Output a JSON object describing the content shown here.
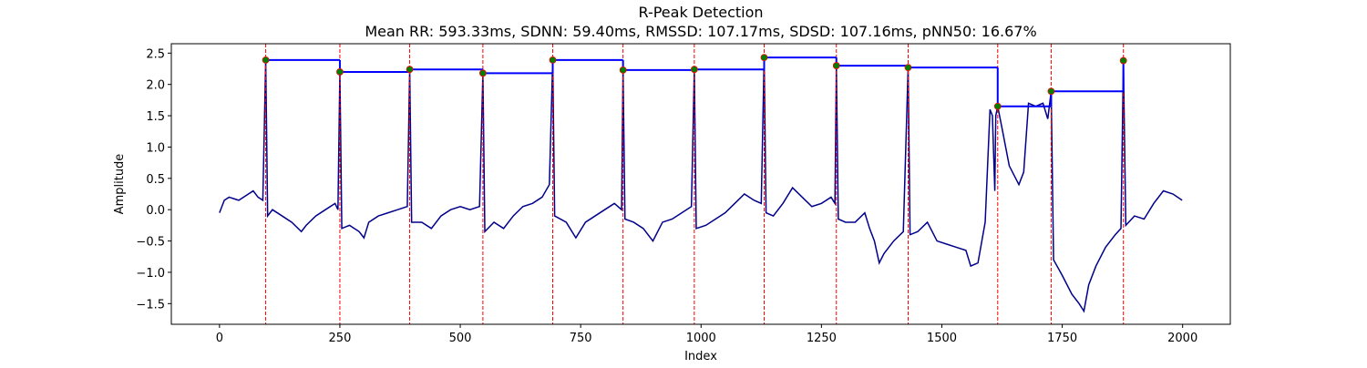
{
  "chart_data": {
    "type": "line",
    "title": "R-Peak Detection",
    "subtitle": "Mean RR: 593.33ms, SDNN: 59.40ms, RMSSD: 107.17ms, SDSD: 107.16ms, pNN50: 16.67%",
    "x_label": "Index",
    "y_label": "Amplitude",
    "xlim": [
      -100,
      2099
    ],
    "ylim": [
      -1.83,
      2.65
    ],
    "xticks": [
      0,
      250,
      500,
      750,
      1000,
      1250,
      1500,
      1750,
      2000
    ],
    "yticks": [
      {
        "value": -1.5,
        "label": "−1.5"
      },
      {
        "value": -1.0,
        "label": "−1.0"
      },
      {
        "value": -0.5,
        "label": "−0.5"
      },
      {
        "value": 0,
        "label": "0.0"
      },
      0.5,
      {
        "value": 1,
        "label": "1.0"
      },
      1.5,
      {
        "value": 2,
        "label": "2.0"
      },
      2.5
    ],
    "signal": {
      "color": "#00008b",
      "x": [
        0,
        10,
        20,
        40,
        60,
        70,
        80,
        90,
        96,
        100,
        110,
        130,
        150,
        170,
        180,
        200,
        220,
        240,
        246,
        250,
        254,
        270,
        290,
        300,
        310,
        330,
        350,
        370,
        390,
        395,
        399,
        420,
        440,
        460,
        480,
        500,
        520,
        540,
        547,
        551,
        570,
        590,
        610,
        630,
        650,
        670,
        685,
        692,
        696,
        720,
        740,
        760,
        780,
        800,
        820,
        835,
        838,
        842,
        860,
        880,
        900,
        920,
        940,
        960,
        980,
        986,
        990,
        1010,
        1030,
        1050,
        1070,
        1090,
        1110,
        1125,
        1131,
        1135,
        1150,
        1170,
        1190,
        1210,
        1230,
        1250,
        1270,
        1278,
        1281,
        1285,
        1300,
        1320,
        1340,
        1350,
        1360,
        1370,
        1380,
        1400,
        1420,
        1430,
        1434,
        1450,
        1470,
        1490,
        1510,
        1530,
        1550,
        1560,
        1575,
        1590,
        1600,
        1605,
        1610,
        1612,
        1616,
        1625,
        1640,
        1660,
        1670,
        1680,
        1695,
        1710,
        1720,
        1727,
        1732,
        1750,
        1770,
        1785,
        1795,
        1805,
        1820,
        1840,
        1860,
        1872,
        1877,
        1882,
        1900,
        1920,
        1940,
        1960,
        1980,
        1999
      ],
      "values": [
        -0.05,
        0.15,
        0.2,
        0.15,
        0.25,
        0.3,
        0.2,
        0.15,
        2.39,
        -0.1,
        0.0,
        -0.1,
        -0.2,
        -0.35,
        -0.25,
        -0.1,
        0.0,
        0.1,
        0.0,
        2.2,
        -0.3,
        -0.25,
        -0.35,
        -0.45,
        -0.2,
        -0.1,
        -0.05,
        0.0,
        0.05,
        2.24,
        -0.2,
        -0.2,
        -0.3,
        -0.1,
        0.0,
        0.05,
        0.0,
        0.05,
        2.18,
        -0.35,
        -0.2,
        -0.3,
        -0.1,
        0.05,
        0.1,
        0.2,
        0.4,
        2.39,
        -0.1,
        -0.2,
        -0.45,
        -0.2,
        -0.1,
        0.0,
        0.1,
        0.0,
        2.23,
        -0.15,
        -0.2,
        -0.3,
        -0.5,
        -0.2,
        -0.15,
        -0.05,
        0.05,
        2.24,
        -0.3,
        -0.25,
        -0.15,
        -0.05,
        0.1,
        0.25,
        0.15,
        0.1,
        2.43,
        -0.05,
        -0.1,
        0.1,
        0.35,
        0.2,
        0.05,
        0.1,
        0.2,
        0.1,
        2.3,
        -0.15,
        -0.2,
        -0.2,
        -0.05,
        -0.3,
        -0.5,
        -0.85,
        -0.7,
        -0.5,
        -0.35,
        2.27,
        -0.4,
        -0.35,
        -0.2,
        -0.5,
        -0.55,
        -0.6,
        -0.65,
        -0.9,
        -0.85,
        -0.2,
        1.6,
        1.5,
        0.3,
        1.5,
        1.65,
        1.3,
        0.7,
        0.4,
        0.6,
        1.7,
        1.65,
        1.7,
        1.45,
        1.89,
        -0.8,
        -1.05,
        -1.35,
        -1.5,
        -1.62,
        -1.2,
        -0.9,
        -0.6,
        -0.4,
        -0.3,
        2.38,
        -0.25,
        -0.1,
        -0.15,
        0.1,
        0.3,
        0.25,
        0.15
      ]
    },
    "peaks": {
      "color": "#008000",
      "line_color": "#0000ff",
      "marker_color": "#ff0000",
      "x": [
        96,
        250,
        395,
        547,
        692,
        838,
        986,
        1131,
        1281,
        1430,
        1616,
        1727,
        1877
      ],
      "values": [
        2.39,
        2.2,
        2.24,
        2.18,
        2.39,
        2.23,
        2.24,
        2.43,
        2.3,
        2.27,
        1.65,
        1.89,
        2.38
      ]
    }
  }
}
